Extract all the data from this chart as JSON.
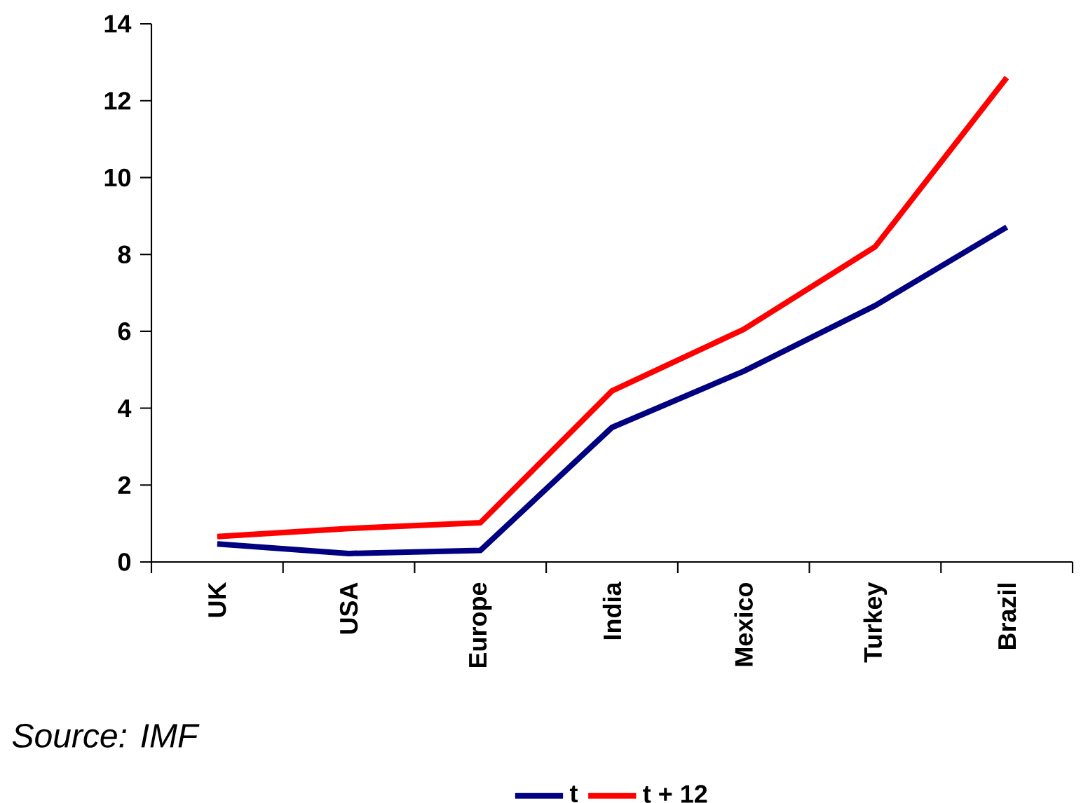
{
  "chart_data": {
    "type": "line",
    "categories": [
      "UK",
      "USA",
      "Europe",
      "India",
      "Mexico",
      "Turkey",
      "Brazil"
    ],
    "series": [
      {
        "name": "t",
        "color": "#000080",
        "values": [
          0.47,
          0.22,
          0.3,
          3.5,
          4.96,
          6.67,
          8.71
        ]
      },
      {
        "name": "t + 12",
        "color": "#ff0000",
        "values": [
          0.66,
          0.87,
          1.02,
          4.45,
          6.05,
          8.2,
          12.6
        ]
      }
    ],
    "ylim": [
      0,
      14
    ],
    "yticks": [
      0,
      2,
      4,
      6,
      8,
      10,
      12,
      14
    ],
    "grid": false,
    "legend": "bottom",
    "annotations": [
      "Source: IMF"
    ]
  }
}
